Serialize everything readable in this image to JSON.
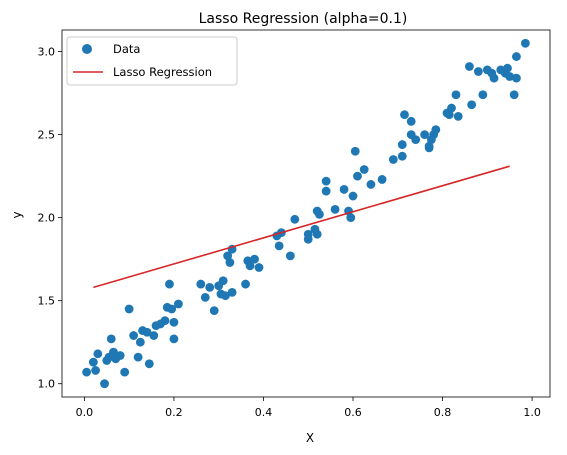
{
  "chart_data": {
    "type": "scatter",
    "title": "Lasso Regression (alpha=0.1)",
    "xlabel": "X",
    "ylabel": "y",
    "xlim": [
      -0.05,
      1.04
    ],
    "ylim": [
      0.92,
      3.13
    ],
    "xticks": [
      0.0,
      0.2,
      0.4,
      0.6,
      0.8,
      1.0
    ],
    "xtick_labels": [
      "0.0",
      "0.2",
      "0.4",
      "0.6",
      "0.8",
      "1.0"
    ],
    "yticks": [
      1.0,
      1.5,
      2.0,
      2.5,
      3.0
    ],
    "ytick_labels": [
      "1.0",
      "1.5",
      "2.0",
      "2.5",
      "3.0"
    ],
    "grid": false,
    "legend": {
      "placement": "top-left",
      "entries": [
        {
          "label": "Data",
          "marker": "circle",
          "color": "#1f77b4"
        },
        {
          "label": "Lasso Regression",
          "marker": "line",
          "color": "#d62728"
        }
      ]
    },
    "series": [
      {
        "name": "Data",
        "kind": "scatter",
        "color": "#1f77b4",
        "points": [
          [
            0.005,
            1.07
          ],
          [
            0.02,
            1.13
          ],
          [
            0.025,
            1.08
          ],
          [
            0.03,
            1.18
          ],
          [
            0.045,
            1.0
          ],
          [
            0.05,
            1.14
          ],
          [
            0.055,
            1.16
          ],
          [
            0.06,
            1.27
          ],
          [
            0.065,
            1.19
          ],
          [
            0.07,
            1.15
          ],
          [
            0.08,
            1.17
          ],
          [
            0.09,
            1.07
          ],
          [
            0.1,
            1.45
          ],
          [
            0.11,
            1.29
          ],
          [
            0.12,
            1.16
          ],
          [
            0.125,
            1.25
          ],
          [
            0.13,
            1.32
          ],
          [
            0.14,
            1.31
          ],
          [
            0.145,
            1.12
          ],
          [
            0.155,
            1.29
          ],
          [
            0.16,
            1.35
          ],
          [
            0.17,
            1.36
          ],
          [
            0.18,
            1.38
          ],
          [
            0.185,
            1.46
          ],
          [
            0.19,
            1.6
          ],
          [
            0.195,
            1.45
          ],
          [
            0.2,
            1.37
          ],
          [
            0.2,
            1.27
          ],
          [
            0.21,
            1.48
          ],
          [
            0.26,
            1.6
          ],
          [
            0.27,
            1.52
          ],
          [
            0.28,
            1.58
          ],
          [
            0.29,
            1.44
          ],
          [
            0.3,
            1.59
          ],
          [
            0.305,
            1.54
          ],
          [
            0.31,
            1.62
          ],
          [
            0.315,
            1.53
          ],
          [
            0.32,
            1.77
          ],
          [
            0.325,
            1.73
          ],
          [
            0.33,
            1.55
          ],
          [
            0.33,
            1.81
          ],
          [
            0.36,
            1.6
          ],
          [
            0.365,
            1.74
          ],
          [
            0.37,
            1.71
          ],
          [
            0.38,
            1.75
          ],
          [
            0.39,
            1.7
          ],
          [
            0.43,
            1.89
          ],
          [
            0.435,
            1.83
          ],
          [
            0.44,
            1.91
          ],
          [
            0.46,
            1.77
          ],
          [
            0.47,
            1.99
          ],
          [
            0.5,
            1.9
          ],
          [
            0.5,
            1.87
          ],
          [
            0.515,
            1.93
          ],
          [
            0.52,
            2.04
          ],
          [
            0.52,
            1.9
          ],
          [
            0.525,
            2.02
          ],
          [
            0.54,
            2.22
          ],
          [
            0.54,
            2.16
          ],
          [
            0.56,
            2.05
          ],
          [
            0.58,
            2.17
          ],
          [
            0.59,
            2.04
          ],
          [
            0.595,
            2.0
          ],
          [
            0.6,
            2.13
          ],
          [
            0.605,
            2.4
          ],
          [
            0.61,
            2.25
          ],
          [
            0.625,
            2.29
          ],
          [
            0.64,
            2.2
          ],
          [
            0.665,
            2.23
          ],
          [
            0.69,
            2.35
          ],
          [
            0.71,
            2.37
          ],
          [
            0.71,
            2.44
          ],
          [
            0.715,
            2.62
          ],
          [
            0.73,
            2.5
          ],
          [
            0.73,
            2.58
          ],
          [
            0.74,
            2.47
          ],
          [
            0.76,
            2.5
          ],
          [
            0.77,
            2.43
          ],
          [
            0.77,
            2.42
          ],
          [
            0.775,
            2.47
          ],
          [
            0.78,
            2.5
          ],
          [
            0.785,
            2.53
          ],
          [
            0.81,
            2.63
          ],
          [
            0.815,
            2.62
          ],
          [
            0.82,
            2.66
          ],
          [
            0.83,
            2.74
          ],
          [
            0.835,
            2.61
          ],
          [
            0.86,
            2.91
          ],
          [
            0.865,
            2.68
          ],
          [
            0.88,
            2.88
          ],
          [
            0.89,
            2.74
          ],
          [
            0.9,
            2.89
          ],
          [
            0.91,
            2.87
          ],
          [
            0.915,
            2.84
          ],
          [
            0.93,
            2.89
          ],
          [
            0.94,
            2.87
          ],
          [
            0.945,
            2.9
          ],
          [
            0.95,
            2.85
          ],
          [
            0.96,
            2.74
          ],
          [
            0.965,
            2.84
          ],
          [
            0.965,
            2.97
          ],
          [
            0.985,
            3.05
          ]
        ]
      },
      {
        "name": "Lasso Regression",
        "kind": "line",
        "color": "#d62728",
        "points": [
          [
            0.02,
            1.58
          ],
          [
            0.95,
            2.31
          ]
        ]
      }
    ]
  }
}
